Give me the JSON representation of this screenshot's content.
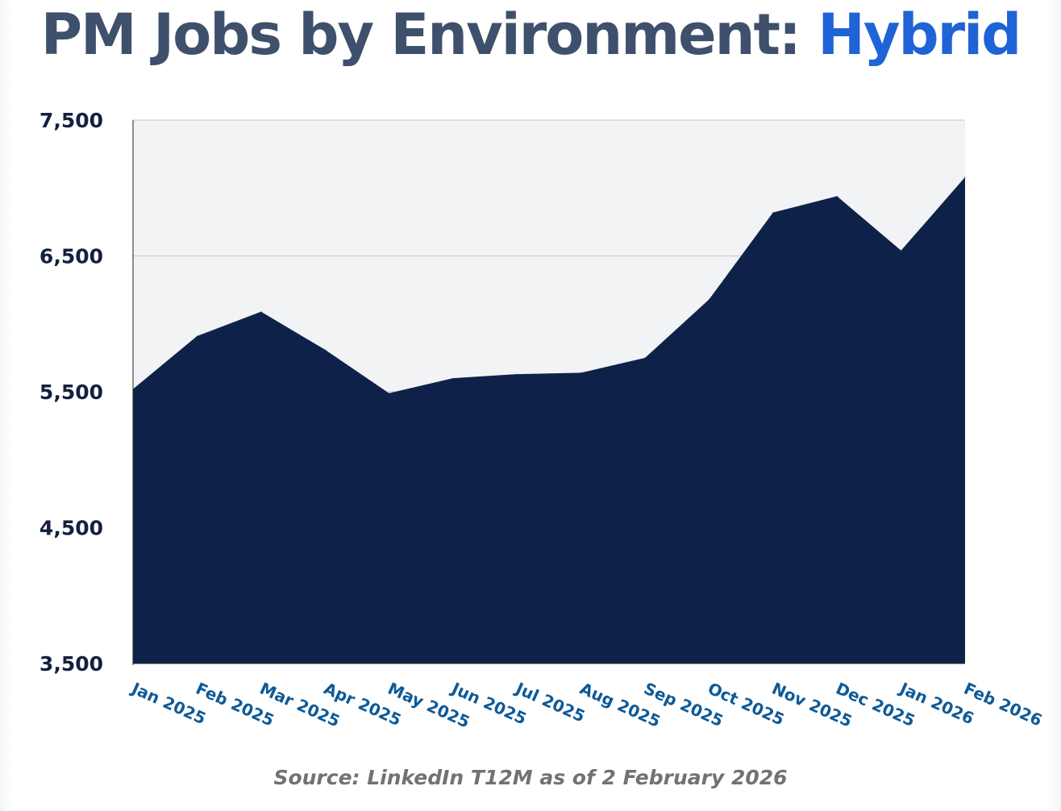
{
  "title": {
    "prefix": "PM Jobs by Environment:",
    "highlight": "Hybrid"
  },
  "source": "Source: LinkedIn T12M as of 2 February 2026",
  "colors": {
    "title": "#3e506b",
    "highlight": "#1f63d6",
    "area": "#0e2249",
    "plot_background": "#f2f3f5",
    "grid": "#c4c6cc",
    "y_tick": "#13213f",
    "x_tick": "#0d5a98"
  },
  "chart_data": {
    "type": "area",
    "title": "PM Jobs by Environment: Hybrid",
    "xlabel": "",
    "ylabel": "",
    "ylim": [
      3500,
      7500
    ],
    "yticks": [
      3500,
      4500,
      5500,
      6500,
      7500
    ],
    "ytick_labels": [
      "3,500",
      "4,500",
      "5,500",
      "6,500",
      "7,500"
    ],
    "grid": true,
    "legend": "none",
    "categories": [
      "Jan 2025",
      "Feb 2025",
      "Mar 2025",
      "Apr 2025",
      "May 2025",
      "Jun 2025",
      "Jul 2025",
      "Aug 2025",
      "Sep 2025",
      "Oct 2025",
      "Nov 2025",
      "Dec 2025",
      "Jan 2026",
      "Feb 2026"
    ],
    "series": [
      {
        "values": [
          5520,
          5910,
          6090,
          5810,
          5490,
          5600,
          5630,
          5640,
          5750,
          6180,
          6820,
          6940,
          6540,
          7080
        ]
      }
    ]
  }
}
